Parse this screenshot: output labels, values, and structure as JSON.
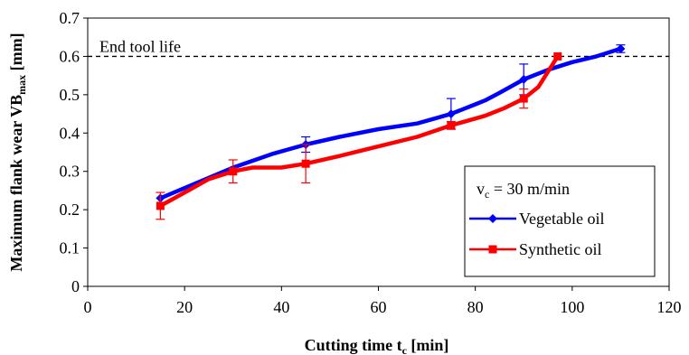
{
  "chart_data": {
    "type": "line",
    "xlabel": {
      "main": "Cutting time t",
      "sub": "c",
      "unit": " [min]"
    },
    "ylabel": {
      "main": "Maximum flank wear VB",
      "sub": "max",
      "unit": " [mm]"
    },
    "xlim": [
      0,
      120
    ],
    "ylim": [
      0,
      0.7
    ],
    "xticks": [
      0,
      20,
      40,
      60,
      80,
      100,
      120
    ],
    "yticks": [
      0,
      0.1,
      0.2,
      0.3,
      0.4,
      0.5,
      0.6,
      0.7
    ],
    "ytick_labels": [
      "0",
      "0.1",
      "0.2",
      "0.3",
      "0.4",
      "0.5",
      "0.6",
      "0.7"
    ],
    "grid": false,
    "legend_position": "right",
    "legend": {
      "condition": {
        "main": "v",
        "sub": "c",
        "rest": " = 30 m/min"
      }
    },
    "reference_line": {
      "y": 0.6,
      "label": "End tool life",
      "style": "dashed"
    },
    "series": [
      {
        "name": "Vegetable oil",
        "color": "#0000ff",
        "marker": "diamond",
        "markers": [
          {
            "x": 15,
            "y": 0.23
          },
          {
            "x": 45,
            "y": 0.37,
            "err": 0.02
          },
          {
            "x": 75,
            "y": 0.45,
            "err": 0.04
          },
          {
            "x": 90,
            "y": 0.54,
            "err": 0.04
          },
          {
            "x": 110,
            "y": 0.62,
            "err": 0.01
          }
        ],
        "curve": [
          [
            15,
            0.23
          ],
          [
            30,
            0.31
          ],
          [
            38,
            0.345
          ],
          [
            45,
            0.37
          ],
          [
            52,
            0.39
          ],
          [
            60,
            0.41
          ],
          [
            68,
            0.425
          ],
          [
            75,
            0.45
          ],
          [
            80,
            0.475
          ],
          [
            82,
            0.485
          ],
          [
            85,
            0.505
          ],
          [
            90,
            0.54
          ],
          [
            95,
            0.565
          ],
          [
            100,
            0.585
          ],
          [
            105,
            0.6
          ],
          [
            110,
            0.62
          ]
        ]
      },
      {
        "name": "Synthetic oil",
        "color": "#ff0000",
        "marker": "square",
        "markers": [
          {
            "x": 15,
            "y": 0.21,
            "err": 0.035
          },
          {
            "x": 30,
            "y": 0.3,
            "err": 0.03
          },
          {
            "x": 45,
            "y": 0.32,
            "err": 0.05
          },
          {
            "x": 75,
            "y": 0.42,
            "err": 0.01
          },
          {
            "x": 90,
            "y": 0.49,
            "err": 0.025
          },
          {
            "x": 97,
            "y": 0.6
          }
        ],
        "curve": [
          [
            15,
            0.21
          ],
          [
            20,
            0.245
          ],
          [
            25,
            0.28
          ],
          [
            30,
            0.3
          ],
          [
            34,
            0.31
          ],
          [
            40,
            0.31
          ],
          [
            45,
            0.32
          ],
          [
            52,
            0.34
          ],
          [
            60,
            0.365
          ],
          [
            68,
            0.39
          ],
          [
            75,
            0.42
          ],
          [
            82,
            0.445
          ],
          [
            86,
            0.465
          ],
          [
            90,
            0.49
          ],
          [
            93,
            0.52
          ],
          [
            95,
            0.56
          ],
          [
            97,
            0.6
          ]
        ]
      }
    ]
  }
}
